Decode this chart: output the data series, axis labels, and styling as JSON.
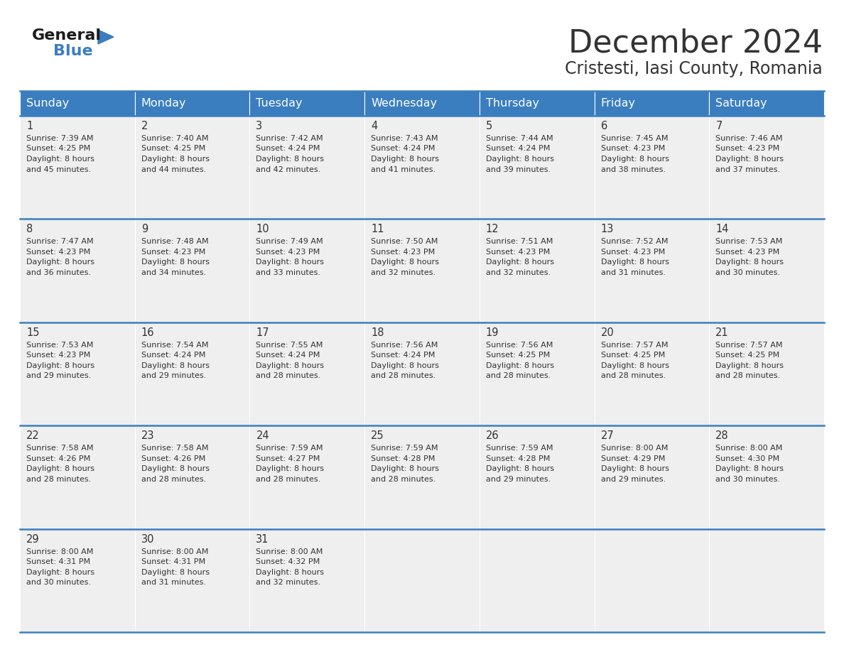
{
  "title": "December 2024",
  "subtitle": "Cristesti, Iasi County, Romania",
  "header_color": "#3a7ebf",
  "header_text_color": "#ffffff",
  "cell_bg_color": "#efefef",
  "day_names": [
    "Sunday",
    "Monday",
    "Tuesday",
    "Wednesday",
    "Thursday",
    "Friday",
    "Saturday"
  ],
  "days": [
    {
      "day": 1,
      "col": 0,
      "row": 0,
      "sunrise": "7:39 AM",
      "sunset": "4:25 PM",
      "daylight": "8 hours and 45 minutes."
    },
    {
      "day": 2,
      "col": 1,
      "row": 0,
      "sunrise": "7:40 AM",
      "sunset": "4:25 PM",
      "daylight": "8 hours and 44 minutes."
    },
    {
      "day": 3,
      "col": 2,
      "row": 0,
      "sunrise": "7:42 AM",
      "sunset": "4:24 PM",
      "daylight": "8 hours and 42 minutes."
    },
    {
      "day": 4,
      "col": 3,
      "row": 0,
      "sunrise": "7:43 AM",
      "sunset": "4:24 PM",
      "daylight": "8 hours and 41 minutes."
    },
    {
      "day": 5,
      "col": 4,
      "row": 0,
      "sunrise": "7:44 AM",
      "sunset": "4:24 PM",
      "daylight": "8 hours and 39 minutes."
    },
    {
      "day": 6,
      "col": 5,
      "row": 0,
      "sunrise": "7:45 AM",
      "sunset": "4:23 PM",
      "daylight": "8 hours and 38 minutes."
    },
    {
      "day": 7,
      "col": 6,
      "row": 0,
      "sunrise": "7:46 AM",
      "sunset": "4:23 PM",
      "daylight": "8 hours and 37 minutes."
    },
    {
      "day": 8,
      "col": 0,
      "row": 1,
      "sunrise": "7:47 AM",
      "sunset": "4:23 PM",
      "daylight": "8 hours and 36 minutes."
    },
    {
      "day": 9,
      "col": 1,
      "row": 1,
      "sunrise": "7:48 AM",
      "sunset": "4:23 PM",
      "daylight": "8 hours and 34 minutes."
    },
    {
      "day": 10,
      "col": 2,
      "row": 1,
      "sunrise": "7:49 AM",
      "sunset": "4:23 PM",
      "daylight": "8 hours and 33 minutes."
    },
    {
      "day": 11,
      "col": 3,
      "row": 1,
      "sunrise": "7:50 AM",
      "sunset": "4:23 PM",
      "daylight": "8 hours and 32 minutes."
    },
    {
      "day": 12,
      "col": 4,
      "row": 1,
      "sunrise": "7:51 AM",
      "sunset": "4:23 PM",
      "daylight": "8 hours and 32 minutes."
    },
    {
      "day": 13,
      "col": 5,
      "row": 1,
      "sunrise": "7:52 AM",
      "sunset": "4:23 PM",
      "daylight": "8 hours and 31 minutes."
    },
    {
      "day": 14,
      "col": 6,
      "row": 1,
      "sunrise": "7:53 AM",
      "sunset": "4:23 PM",
      "daylight": "8 hours and 30 minutes."
    },
    {
      "day": 15,
      "col": 0,
      "row": 2,
      "sunrise": "7:53 AM",
      "sunset": "4:23 PM",
      "daylight": "8 hours and 29 minutes."
    },
    {
      "day": 16,
      "col": 1,
      "row": 2,
      "sunrise": "7:54 AM",
      "sunset": "4:24 PM",
      "daylight": "8 hours and 29 minutes."
    },
    {
      "day": 17,
      "col": 2,
      "row": 2,
      "sunrise": "7:55 AM",
      "sunset": "4:24 PM",
      "daylight": "8 hours and 28 minutes."
    },
    {
      "day": 18,
      "col": 3,
      "row": 2,
      "sunrise": "7:56 AM",
      "sunset": "4:24 PM",
      "daylight": "8 hours and 28 minutes."
    },
    {
      "day": 19,
      "col": 4,
      "row": 2,
      "sunrise": "7:56 AM",
      "sunset": "4:25 PM",
      "daylight": "8 hours and 28 minutes."
    },
    {
      "day": 20,
      "col": 5,
      "row": 2,
      "sunrise": "7:57 AM",
      "sunset": "4:25 PM",
      "daylight": "8 hours and 28 minutes."
    },
    {
      "day": 21,
      "col": 6,
      "row": 2,
      "sunrise": "7:57 AM",
      "sunset": "4:25 PM",
      "daylight": "8 hours and 28 minutes."
    },
    {
      "day": 22,
      "col": 0,
      "row": 3,
      "sunrise": "7:58 AM",
      "sunset": "4:26 PM",
      "daylight": "8 hours and 28 minutes."
    },
    {
      "day": 23,
      "col": 1,
      "row": 3,
      "sunrise": "7:58 AM",
      "sunset": "4:26 PM",
      "daylight": "8 hours and 28 minutes."
    },
    {
      "day": 24,
      "col": 2,
      "row": 3,
      "sunrise": "7:59 AM",
      "sunset": "4:27 PM",
      "daylight": "8 hours and 28 minutes."
    },
    {
      "day": 25,
      "col": 3,
      "row": 3,
      "sunrise": "7:59 AM",
      "sunset": "4:28 PM",
      "daylight": "8 hours and 28 minutes."
    },
    {
      "day": 26,
      "col": 4,
      "row": 3,
      "sunrise": "7:59 AM",
      "sunset": "4:28 PM",
      "daylight": "8 hours and 29 minutes."
    },
    {
      "day": 27,
      "col": 5,
      "row": 3,
      "sunrise": "8:00 AM",
      "sunset": "4:29 PM",
      "daylight": "8 hours and 29 minutes."
    },
    {
      "day": 28,
      "col": 6,
      "row": 3,
      "sunrise": "8:00 AM",
      "sunset": "4:30 PM",
      "daylight": "8 hours and 30 minutes."
    },
    {
      "day": 29,
      "col": 0,
      "row": 4,
      "sunrise": "8:00 AM",
      "sunset": "4:31 PM",
      "daylight": "8 hours and 30 minutes."
    },
    {
      "day": 30,
      "col": 1,
      "row": 4,
      "sunrise": "8:00 AM",
      "sunset": "4:31 PM",
      "daylight": "8 hours and 31 minutes."
    },
    {
      "day": 31,
      "col": 2,
      "row": 4,
      "sunrise": "8:00 AM",
      "sunset": "4:32 PM",
      "daylight": "8 hours and 32 minutes."
    }
  ],
  "logo_color_general": "#1c1c1c",
  "logo_color_blue": "#3a7ebf",
  "logo_triangle_color": "#3a7ebf",
  "text_color": "#333333",
  "line_color": "#3a7ebf",
  "cell_font_size": 8.0,
  "day_num_font_size": 10.5,
  "header_font_size": 11.5,
  "title_font_size": 32,
  "subtitle_font_size": 17
}
